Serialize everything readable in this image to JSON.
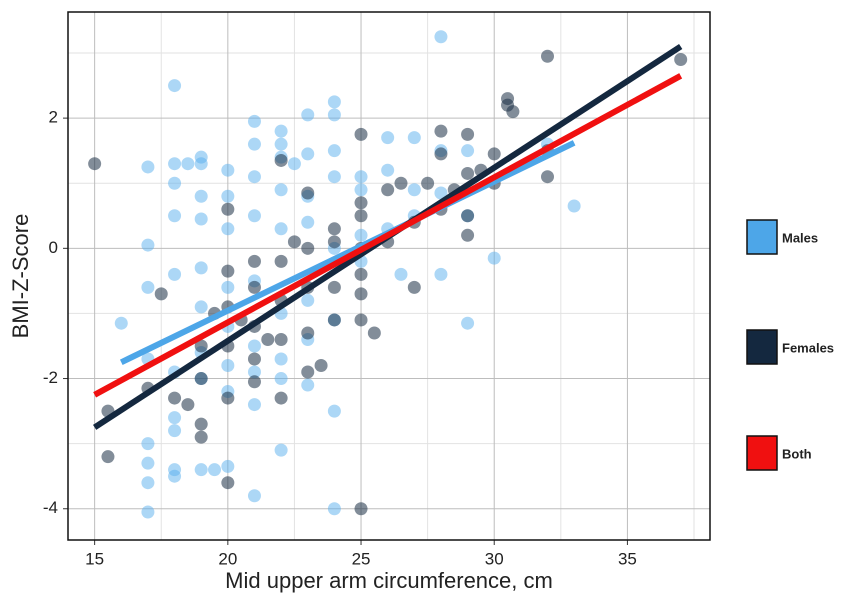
{
  "chart_data": {
    "type": "scatter",
    "x_label": "Mid upper arm circumference, cm",
    "y_label": "BMI-Z-Score",
    "xlim": [
      14,
      38.1
    ],
    "ylim": [
      -4.48,
      3.63
    ],
    "xticks": [
      15,
      20,
      25,
      30,
      35
    ],
    "yticks": [
      -4,
      -2,
      0,
      2
    ],
    "x_minor_ticks": [
      17.5,
      22.5,
      27.5,
      32.5,
      37.5
    ],
    "y_minor_ticks": [
      -3,
      -1,
      1,
      3
    ],
    "grid": true,
    "series": [
      {
        "color": "#5ab0ee",
        "x": [
          17,
          17,
          17,
          17,
          18,
          18,
          18,
          18,
          19,
          19.5,
          20,
          21,
          22,
          24,
          24,
          16,
          17,
          17,
          17,
          18,
          18,
          18,
          18,
          18,
          18.5,
          19,
          19,
          19,
          19,
          19,
          19,
          20,
          20,
          20,
          20,
          20,
          21,
          21,
          21,
          21,
          21,
          21,
          22,
          22,
          22,
          22,
          22,
          22,
          22,
          22.5,
          23,
          23,
          23,
          23,
          23,
          23,
          24,
          24,
          24,
          24,
          24,
          24,
          25,
          25,
          25,
          25,
          26,
          26,
          26,
          26.5,
          27,
          27,
          27,
          28,
          28,
          28,
          28,
          29,
          29,
          29,
          30,
          32,
          33,
          17,
          18,
          19,
          20,
          21,
          19,
          20,
          21,
          22,
          23
        ],
        "values": [
          -4.05,
          -3.6,
          -3.3,
          -3.0,
          -3.5,
          -3.4,
          -2.8,
          -2.6,
          -3.4,
          -3.4,
          -3.35,
          -3.8,
          -3.1,
          -4.0,
          -2.5,
          -1.15,
          -0.6,
          0.05,
          1.25,
          2.5,
          1.3,
          1.0,
          0.5,
          -0.4,
          1.3,
          1.4,
          1.3,
          0.8,
          0.45,
          -0.3,
          -0.9,
          1.2,
          0.8,
          0.3,
          -0.6,
          -1.2,
          1.95,
          1.6,
          1.1,
          0.5,
          -0.5,
          -1.5,
          1.8,
          1.6,
          1.4,
          0.9,
          0.3,
          -1.0,
          -2.0,
          1.3,
          2.05,
          1.45,
          0.8,
          0.4,
          -0.8,
          -2.1,
          2.25,
          2.05,
          1.5,
          1.1,
          0.0,
          -1.1,
          1.1,
          0.9,
          0.2,
          -0.2,
          1.7,
          1.2,
          0.3,
          -0.4,
          1.7,
          0.9,
          0.5,
          3.25,
          1.5,
          0.85,
          -0.4,
          1.5,
          0.5,
          -1.15,
          -0.15,
          1.6,
          0.65,
          -1.7,
          -1.9,
          -2.0,
          -2.2,
          -2.4,
          -1.6,
          -1.8,
          -1.9,
          -1.7,
          -1.4
        ]
      },
      {
        "color": "#1c2f45",
        "x": [
          15,
          15.5,
          15.5,
          17,
          17.5,
          18,
          18.5,
          19,
          19,
          19,
          19,
          19.5,
          20,
          20,
          20,
          20,
          20,
          20,
          20.5,
          21,
          21,
          21,
          21,
          21,
          21.5,
          22,
          22,
          22,
          22,
          22,
          22.5,
          23,
          23,
          23,
          23,
          23,
          23.5,
          24,
          24,
          24,
          24,
          25,
          25,
          25,
          25,
          25,
          25,
          25,
          25,
          25.5,
          26,
          26,
          26.5,
          27,
          27,
          27.5,
          28,
          28,
          28,
          28.5,
          29,
          29,
          29,
          29,
          29.5,
          30,
          30,
          30.5,
          30.5,
          30.7,
          32,
          32,
          32,
          37
        ],
        "values": [
          1.3,
          -3.2,
          -2.5,
          -2.15,
          -0.7,
          -2.3,
          -2.4,
          -2.9,
          -2.7,
          -2.0,
          -1.5,
          -1.0,
          -3.6,
          -2.3,
          -1.5,
          -0.9,
          0.6,
          -0.35,
          -1.1,
          -2.05,
          -1.7,
          -1.2,
          -0.6,
          -0.2,
          -1.4,
          -2.3,
          -1.4,
          -0.8,
          -0.2,
          1.35,
          0.1,
          -1.9,
          -1.3,
          -0.6,
          0.0,
          0.85,
          -1.8,
          -1.1,
          -0.6,
          0.1,
          0.3,
          -4.0,
          -1.1,
          -0.7,
          -0.4,
          0.0,
          0.5,
          0.7,
          1.75,
          -1.3,
          0.1,
          0.9,
          1.0,
          -0.6,
          0.4,
          1.0,
          1.8,
          1.45,
          0.6,
          0.9,
          1.75,
          1.15,
          0.2,
          0.5,
          1.2,
          1.0,
          1.45,
          2.3,
          2.2,
          2.1,
          2.95,
          1.5,
          1.1,
          2.9
        ]
      }
    ],
    "fit_lines": [
      {
        "name": "Males",
        "color": "#4da6e8",
        "x": [
          16,
          33
        ],
        "values": [
          -1.75,
          1.62
        ]
      },
      {
        "name": "Females",
        "color": "#14283f",
        "x": [
          15,
          37
        ],
        "values": [
          -2.75,
          3.1
        ]
      },
      {
        "name": "Both",
        "color": "#f01010",
        "x": [
          15,
          37
        ],
        "values": [
          -2.25,
          2.65
        ]
      }
    ]
  }
}
